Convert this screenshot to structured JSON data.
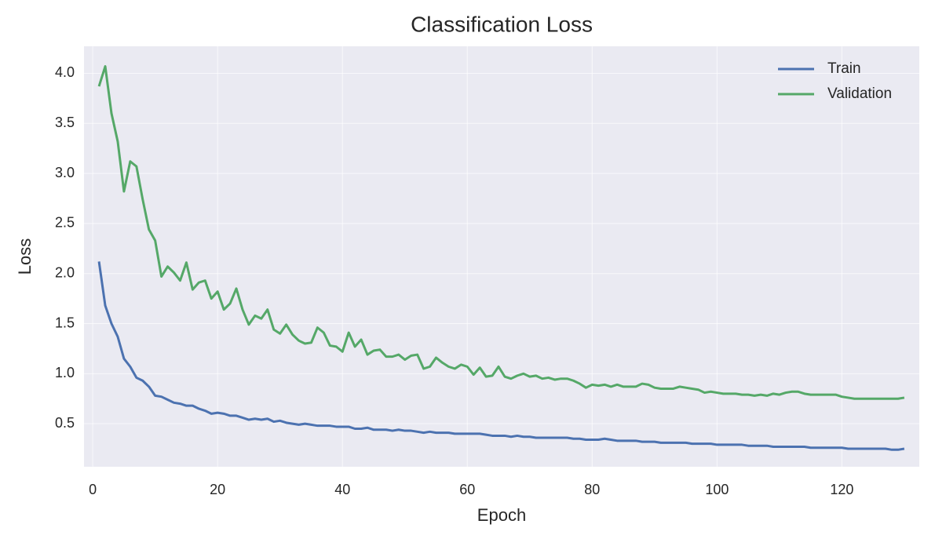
{
  "chart_data": {
    "type": "line",
    "title": "Classification Loss",
    "x_label": "Epoch",
    "y_label": "Loss",
    "x": [
      1,
      2,
      3,
      4,
      5,
      6,
      7,
      8,
      9,
      10,
      11,
      12,
      13,
      14,
      15,
      16,
      17,
      18,
      19,
      20,
      21,
      22,
      23,
      24,
      25,
      26,
      27,
      28,
      29,
      30,
      31,
      32,
      33,
      34,
      35,
      36,
      37,
      38,
      39,
      40,
      41,
      42,
      43,
      44,
      45,
      46,
      47,
      48,
      49,
      50,
      51,
      52,
      53,
      54,
      55,
      56,
      57,
      58,
      59,
      60,
      61,
      62,
      63,
      64,
      65,
      66,
      67,
      68,
      69,
      70,
      71,
      72,
      73,
      74,
      75,
      76,
      77,
      78,
      79,
      80,
      81,
      82,
      83,
      84,
      85,
      86,
      87,
      88,
      89,
      90,
      91,
      92,
      93,
      94,
      95,
      96,
      97,
      98,
      99,
      100,
      101,
      102,
      103,
      104,
      105,
      106,
      107,
      108,
      109,
      110,
      111,
      112,
      113,
      114,
      115,
      116,
      117,
      118,
      119,
      120,
      121,
      122,
      123,
      124,
      125,
      126,
      127,
      128,
      129,
      130
    ],
    "series": [
      {
        "name": "Train",
        "color": "#4c72b0",
        "values": [
          2.12,
          1.68,
          1.5,
          1.37,
          1.15,
          1.07,
          0.96,
          0.93,
          0.87,
          0.78,
          0.77,
          0.74,
          0.71,
          0.7,
          0.68,
          0.68,
          0.65,
          0.63,
          0.6,
          0.61,
          0.6,
          0.58,
          0.58,
          0.56,
          0.54,
          0.55,
          0.54,
          0.55,
          0.52,
          0.53,
          0.51,
          0.5,
          0.49,
          0.5,
          0.49,
          0.48,
          0.48,
          0.48,
          0.47,
          0.47,
          0.47,
          0.45,
          0.45,
          0.46,
          0.44,
          0.44,
          0.44,
          0.43,
          0.44,
          0.43,
          0.43,
          0.42,
          0.41,
          0.42,
          0.41,
          0.41,
          0.41,
          0.4,
          0.4,
          0.4,
          0.4,
          0.4,
          0.39,
          0.38,
          0.38,
          0.38,
          0.37,
          0.38,
          0.37,
          0.37,
          0.36,
          0.36,
          0.36,
          0.36,
          0.36,
          0.36,
          0.35,
          0.35,
          0.34,
          0.34,
          0.34,
          0.35,
          0.34,
          0.33,
          0.33,
          0.33,
          0.33,
          0.32,
          0.32,
          0.32,
          0.31,
          0.31,
          0.31,
          0.31,
          0.31,
          0.3,
          0.3,
          0.3,
          0.3,
          0.29,
          0.29,
          0.29,
          0.29,
          0.29,
          0.28,
          0.28,
          0.28,
          0.28,
          0.27,
          0.27,
          0.27,
          0.27,
          0.27,
          0.27,
          0.26,
          0.26,
          0.26,
          0.26,
          0.26,
          0.26,
          0.25,
          0.25,
          0.25,
          0.25,
          0.25,
          0.25,
          0.25,
          0.24,
          0.24,
          0.25
        ]
      },
      {
        "name": "Validation",
        "color": "#55a868",
        "values": [
          3.87,
          4.07,
          3.6,
          3.32,
          2.82,
          3.12,
          3.07,
          2.74,
          2.44,
          2.33,
          1.97,
          2.07,
          2.01,
          1.93,
          2.11,
          1.84,
          1.91,
          1.93,
          1.75,
          1.82,
          1.64,
          1.7,
          1.85,
          1.64,
          1.49,
          1.58,
          1.55,
          1.64,
          1.44,
          1.4,
          1.49,
          1.39,
          1.33,
          1.3,
          1.31,
          1.46,
          1.41,
          1.28,
          1.27,
          1.22,
          1.41,
          1.27,
          1.34,
          1.19,
          1.23,
          1.24,
          1.17,
          1.17,
          1.19,
          1.14,
          1.18,
          1.19,
          1.05,
          1.07,
          1.16,
          1.11,
          1.07,
          1.05,
          1.09,
          1.07,
          0.99,
          1.06,
          0.97,
          0.98,
          1.07,
          0.97,
          0.95,
          0.98,
          1.0,
          0.97,
          0.98,
          0.95,
          0.96,
          0.94,
          0.95,
          0.95,
          0.93,
          0.9,
          0.86,
          0.89,
          0.88,
          0.89,
          0.87,
          0.89,
          0.87,
          0.87,
          0.87,
          0.9,
          0.89,
          0.86,
          0.85,
          0.85,
          0.85,
          0.87,
          0.86,
          0.85,
          0.84,
          0.81,
          0.82,
          0.81,
          0.8,
          0.8,
          0.8,
          0.79,
          0.79,
          0.78,
          0.79,
          0.78,
          0.8,
          0.79,
          0.81,
          0.82,
          0.82,
          0.8,
          0.79,
          0.79,
          0.79,
          0.79,
          0.79,
          0.77,
          0.76,
          0.75,
          0.75,
          0.75,
          0.75,
          0.75,
          0.75,
          0.75,
          0.75,
          0.76
        ]
      }
    ],
    "xlim": [
      -1.4,
      132.4
    ],
    "ylim": [
      0.07,
      4.27
    ],
    "xticks": [
      0,
      20,
      40,
      60,
      80,
      100,
      120
    ],
    "yticks": [
      0.5,
      {
        "value": 1,
        "label": "1.0"
      },
      1.5,
      {
        "value": 2,
        "label": "2.0"
      },
      2.5,
      {
        "value": 3,
        "label": "3.0"
      },
      3.5,
      {
        "value": 4,
        "label": "4.0"
      }
    ],
    "grid": true,
    "legend": "upper-right"
  }
}
